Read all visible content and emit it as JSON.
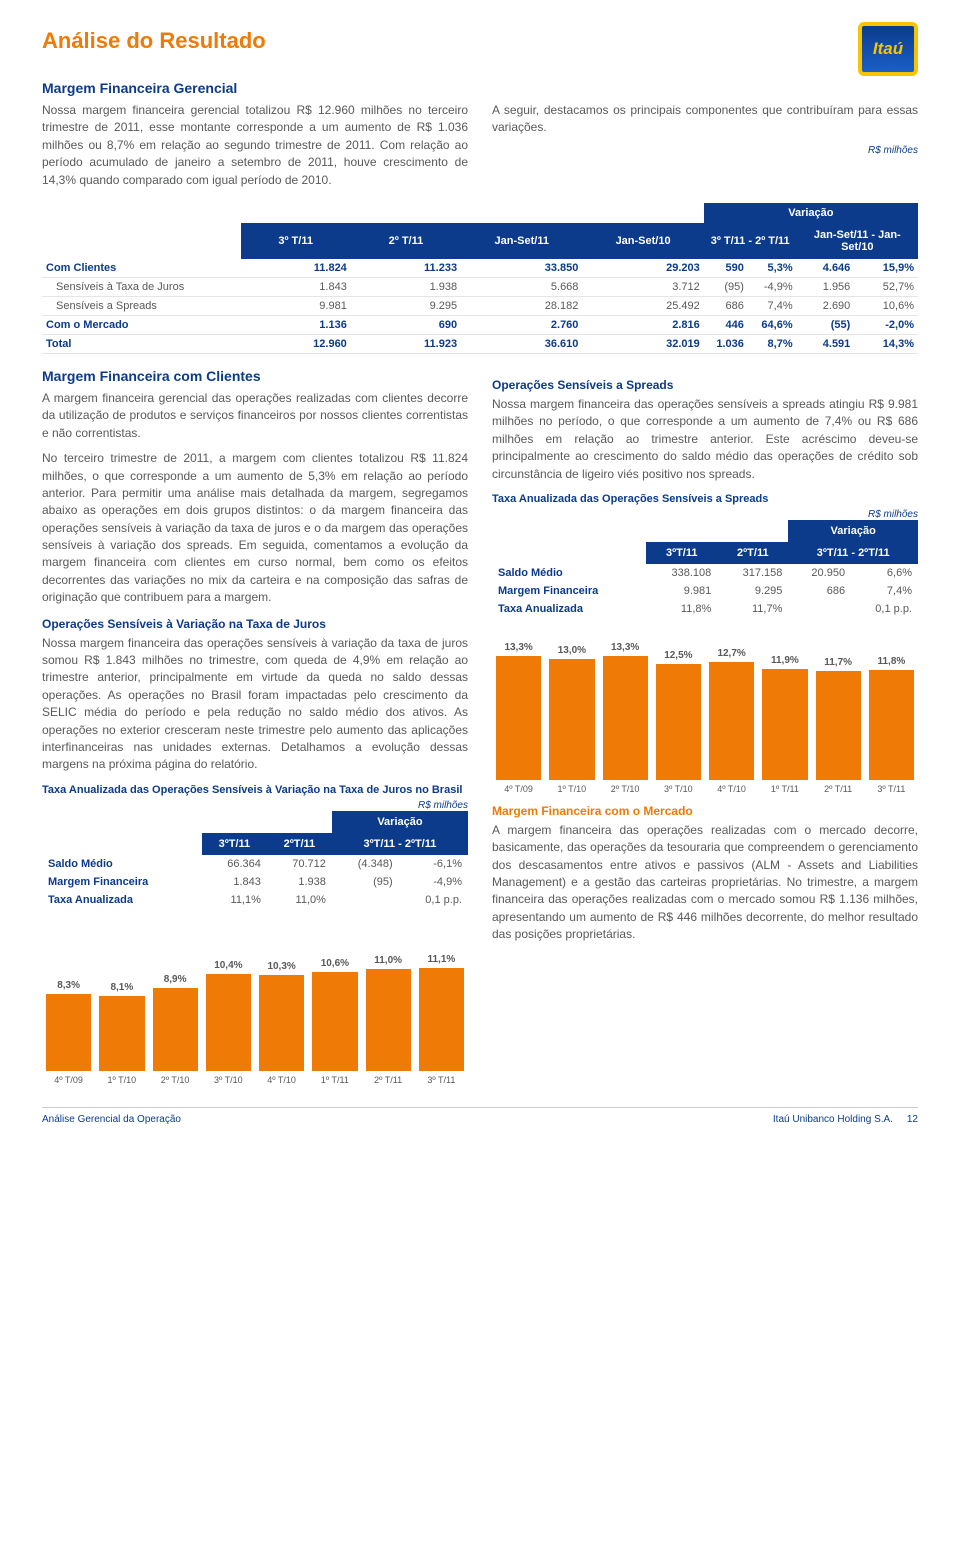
{
  "page_title": "Análise do Resultado",
  "logo_text": "Itaú",
  "section1": {
    "heading": "Margem Financeira Gerencial",
    "left_para": "Nossa margem financeira gerencial totalizou R$ 12.960 milhões no terceiro trimestre de 2011, esse montante corresponde a um aumento de R$ 1.036 milhões ou 8,7% em relação ao segundo trimestre de 2011. Com relação ao período acumulado de janeiro a setembro de 2011, houve crescimento de 14,3% quando comparado com igual período de 2010.",
    "right_para": "A seguir, destacamos os principais componentes que contribuíram para essas variações.",
    "unit": "R$ milhões"
  },
  "main_table": {
    "headers": [
      "",
      "3º T/11",
      "2º T/11",
      "Jan-Set/11",
      "Jan-Set/10",
      "3º T/11 - 2º T/11",
      "Jan-Set/11 - Jan-Set/10"
    ],
    "variacao": "Variação",
    "rows": [
      {
        "label": "Com Clientes",
        "v": [
          "11.824",
          "11.233",
          "33.850",
          "29.203",
          "590",
          "5,3%",
          "4.646",
          "15,9%"
        ],
        "bold": true
      },
      {
        "label": "Sensíveis à Taxa de Juros",
        "v": [
          "1.843",
          "1.938",
          "5.668",
          "3.712",
          "(95)",
          "-4,9%",
          "1.956",
          "52,7%"
        ],
        "indent": true
      },
      {
        "label": "Sensíveis a Spreads",
        "v": [
          "9.981",
          "9.295",
          "28.182",
          "25.492",
          "686",
          "7,4%",
          "2.690",
          "10,6%"
        ],
        "indent": true
      },
      {
        "label": "Com o Mercado",
        "v": [
          "1.136",
          "690",
          "2.760",
          "2.816",
          "446",
          "64,6%",
          "(55)",
          "-2,0%"
        ],
        "bold": true
      },
      {
        "label": "Total",
        "v": [
          "12.960",
          "11.923",
          "36.610",
          "32.019",
          "1.036",
          "8,7%",
          "4.591",
          "14,3%"
        ],
        "bold": true
      }
    ]
  },
  "section2": {
    "heading": "Margem Financeira com Clientes",
    "p1": "A margem financeira gerencial das operações realizadas com clientes decorre da utilização de produtos e serviços financeiros por nossos clientes correntistas e não correntistas.",
    "p2": "No terceiro trimestre de 2011, a margem com clientes totalizou R$ 11.824 milhões, o que corresponde a um aumento de 5,3% em relação ao período anterior. Para permitir uma análise mais detalhada da margem, segregamos abaixo as operações em dois grupos distintos: o da margem financeira das operações sensíveis à variação da taxa de juros e o da margem das operações sensíveis à variação dos spreads. Em seguida, comentamos a evolução da margem financeira com clientes em curso normal, bem como os efeitos decorrentes das variações no mix da carteira e na composição das safras de originação que contribuem para a margem.",
    "spreads_heading": "Operações Sensíveis a Spreads",
    "spreads_p": "Nossa margem financeira das operações sensíveis a spreads atingiu R$ 9.981 milhões no período, o que corresponde a um aumento de 7,4% ou R$ 686 milhões em relação ao trimestre anterior. Este acréscimo deveu-se principalmente ao crescimento do saldo médio das operações de crédito sob circunstância de ligeiro viés positivo nos spreads."
  },
  "spreads_table": {
    "title": "Taxa Anualizada das Operações Sensíveis a Spreads",
    "unit": "R$ milhões",
    "variacao": "Variação",
    "headers": [
      "",
      "3ºT/11",
      "2ºT/11",
      "3ºT/11 - 2ºT/11"
    ],
    "rows": [
      {
        "label": "Saldo Médio",
        "v": [
          "338.108",
          "317.158",
          "20.950",
          "6,6%"
        ]
      },
      {
        "label": "Margem Financeira",
        "v": [
          "9.981",
          "9.295",
          "686",
          "7,4%"
        ]
      },
      {
        "label": "Taxa Anualizada",
        "v": [
          "11,8%",
          "11,7%",
          "",
          "0,1 p.p."
        ]
      }
    ]
  },
  "juros_section": {
    "heading": "Operações Sensíveis à Variação na Taxa de Juros",
    "p": "Nossa margem financeira das operações sensíveis à variação da taxa de juros somou R$ 1.843 milhões no trimestre, com queda de 4,9% em relação ao trimestre anterior, principalmente em virtude da queda no saldo dessas operações. As operações no Brasil foram impactadas pelo crescimento da SELIC média do período e pela redução no saldo médio dos ativos. As operações no exterior cresceram neste trimestre pelo aumento das aplicações interfinanceiras nas unidades externas. Detalhamos a evolução dessas margens na próxima página do relatório."
  },
  "juros_table": {
    "title": "Taxa Anualizada das Operações Sensíveis à Variação na Taxa de Juros no Brasil",
    "unit": "R$ milhões",
    "variacao": "Variação",
    "headers": [
      "",
      "3ºT/11",
      "2ºT/11",
      "3ºT/11 - 2ºT/11"
    ],
    "rows": [
      {
        "label": "Saldo Médio",
        "v": [
          "66.364",
          "70.712",
          "(4.348)",
          "-6,1%"
        ]
      },
      {
        "label": "Margem Financeira",
        "v": [
          "1.843",
          "1.938",
          "(95)",
          "-4,9%"
        ]
      },
      {
        "label": "Taxa Anualizada",
        "v": [
          "11,1%",
          "11,0%",
          "",
          "0,1 p.p."
        ]
      }
    ]
  },
  "chart1": {
    "type": "bar",
    "max": 14,
    "bar_color": "#ef7a06",
    "labels": [
      "4º T/09",
      "1º T/10",
      "2º T/10",
      "3º T/10",
      "4º T/10",
      "1º T/11",
      "2º T/11",
      "3º T/11"
    ],
    "values": [
      8.3,
      8.1,
      8.9,
      10.4,
      10.3,
      10.6,
      11.0,
      11.1
    ],
    "display": [
      "8,3%",
      "8,1%",
      "8,9%",
      "10,4%",
      "10,3%",
      "10,6%",
      "11,0%",
      "11,1%"
    ]
  },
  "chart2": {
    "type": "bar",
    "max": 14,
    "bar_color": "#ef7a06",
    "labels": [
      "4º T/09",
      "1º T/10",
      "2º T/10",
      "3º T/10",
      "4º T/10",
      "1º T/11",
      "2º T/11",
      "3º T/11"
    ],
    "values": [
      13.3,
      13.0,
      13.3,
      12.5,
      12.7,
      11.9,
      11.7,
      11.8
    ],
    "display": [
      "13,3%",
      "13,0%",
      "13,3%",
      "12,5%",
      "12,7%",
      "11,9%",
      "11,7%",
      "11,8%"
    ]
  },
  "mercado": {
    "heading": "Margem Financeira com o Mercado",
    "p": "A margem financeira das operações realizadas com o mercado decorre, basicamente, das operações da tesouraria que compreendem o gerenciamento dos descasamentos entre ativos e passivos (ALM - Assets and Liabilities Management) e a gestão das carteiras proprietárias. No trimestre, a margem financeira das operações realizadas com o mercado somou R$ 1.136 milhões, apresentando um aumento de R$ 446 milhões decorrente, do melhor resultado das posições proprietárias."
  },
  "footer": {
    "left": "Análise Gerencial da Operação",
    "right": "Itaú Unibanco Holding S.A.",
    "page": "12"
  }
}
